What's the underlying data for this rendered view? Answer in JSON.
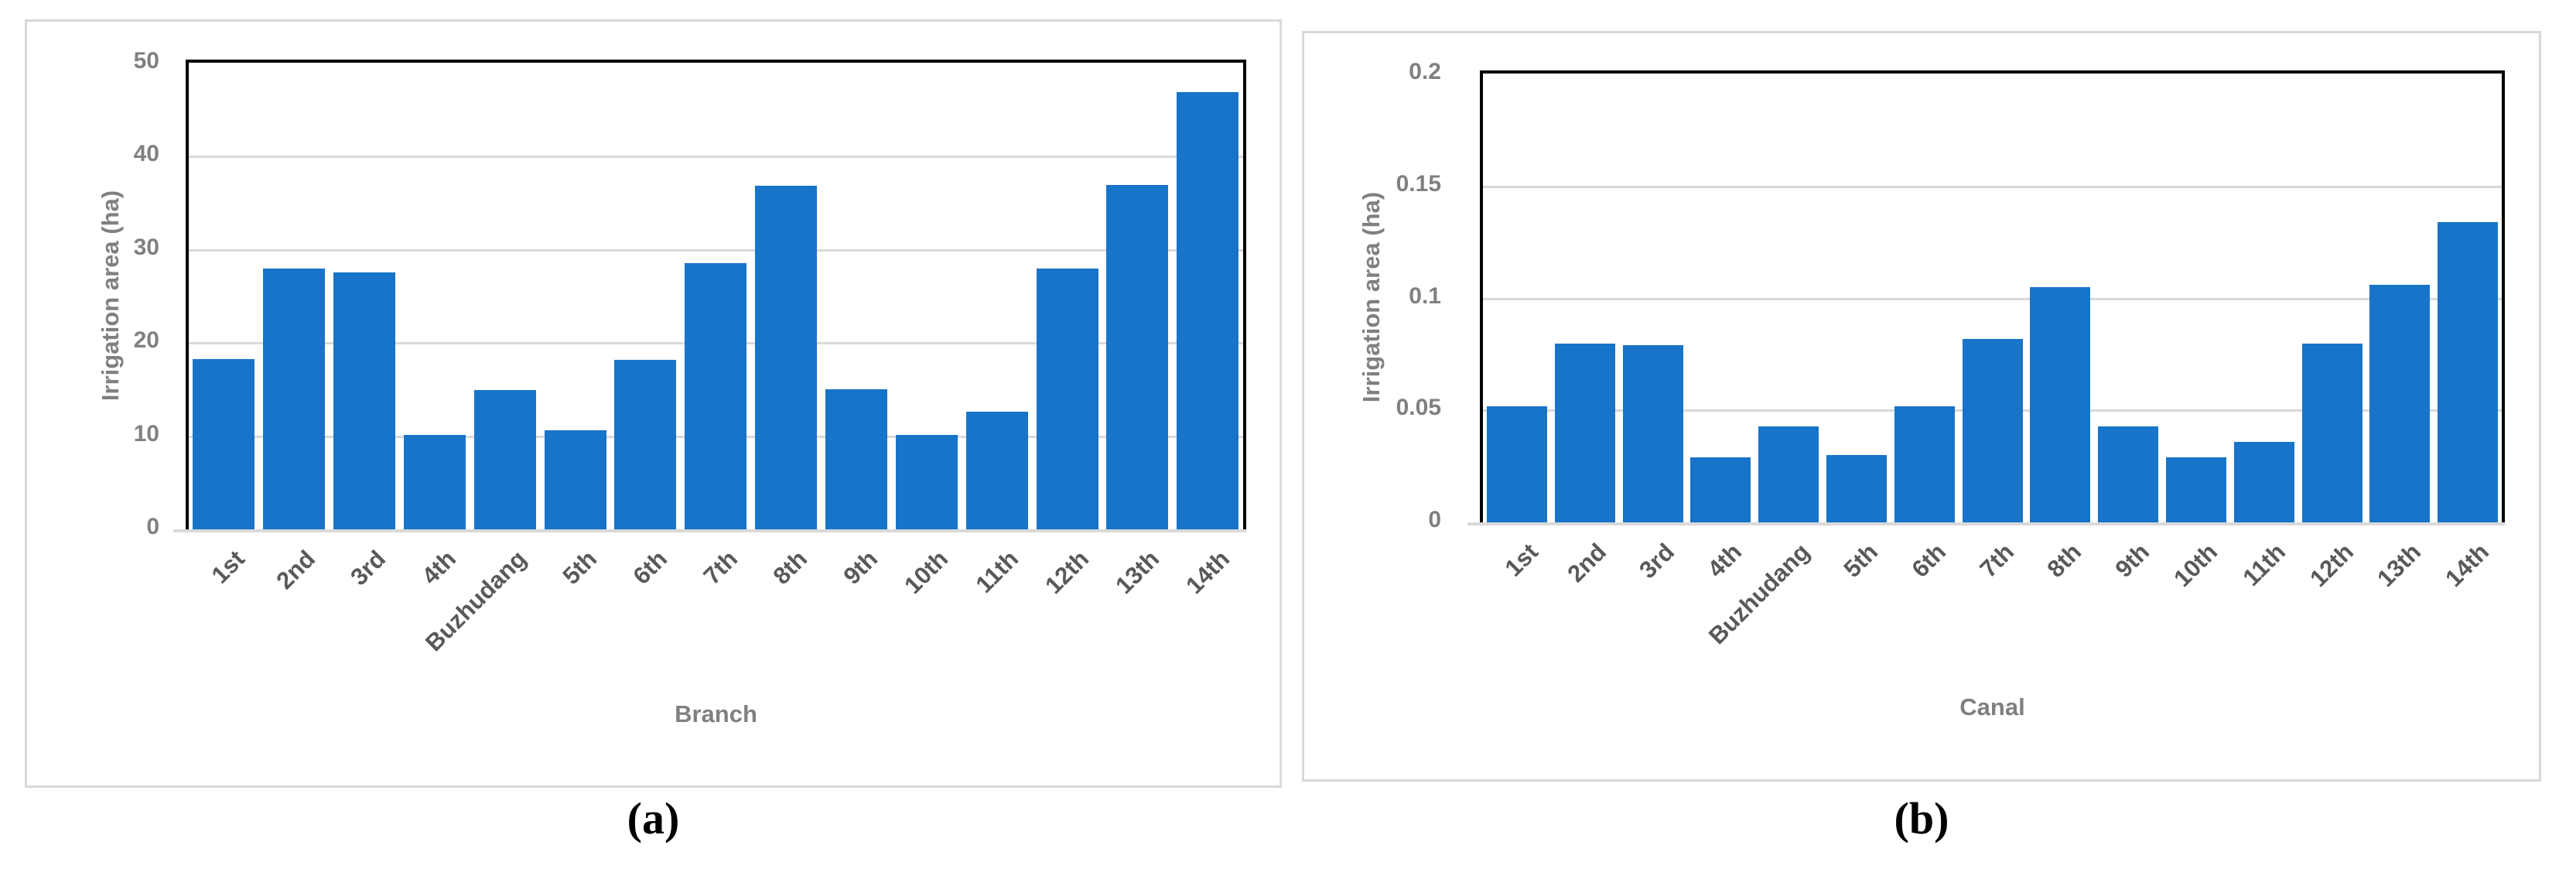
{
  "figure": {
    "bar_color": "#1874c8",
    "grid_color": "#d9d9d9",
    "axis_text_color": "#808080",
    "category_text_color": "#595959"
  },
  "captions": {
    "a": "(a)",
    "b": "(b)"
  },
  "chart_data": [
    {
      "type": "bar",
      "title": "",
      "xlabel": "Branch",
      "ylabel": "Irrigation area (ha)",
      "categories": [
        "1st",
        "2nd",
        "3rd",
        "4th",
        "Buzhudang",
        "5th",
        "6th",
        "7th",
        "8th",
        "9th",
        "10th",
        "11th",
        "12th",
        "13th",
        "14th"
      ],
      "values": [
        18.5,
        28.2,
        27.8,
        10.4,
        15.2,
        10.9,
        18.4,
        28.8,
        37.1,
        15.3,
        10.4,
        12.9,
        28.2,
        37.2,
        47.2
      ],
      "ylim": [
        0,
        50
      ],
      "yticks": [
        0,
        10,
        20,
        30,
        40,
        50
      ],
      "ytick_labels": [
        "0",
        "10",
        "20",
        "30",
        "40",
        "50"
      ],
      "grid": true,
      "legend_position": "none"
    },
    {
      "type": "bar",
      "title": "",
      "xlabel": "Canal",
      "ylabel": "Irrigation area (ha)",
      "categories": [
        "1st",
        "2nd",
        "3rd",
        "4th",
        "Buzhudang",
        "5th",
        "6th",
        "7th",
        "8th",
        "9th",
        "10th",
        "11th",
        "12th",
        "13th",
        "14th"
      ],
      "values": [
        0.053,
        0.081,
        0.08,
        0.03,
        0.044,
        0.031,
        0.053,
        0.083,
        0.106,
        0.044,
        0.03,
        0.037,
        0.081,
        0.107,
        0.135
      ],
      "ylim": [
        0,
        0.2
      ],
      "yticks": [
        0,
        0.05,
        0.1,
        0.15,
        0.2
      ],
      "ytick_labels": [
        "0",
        "0.05",
        "0.1",
        "0.15",
        "0.2"
      ],
      "grid": true,
      "legend_position": "none"
    }
  ]
}
